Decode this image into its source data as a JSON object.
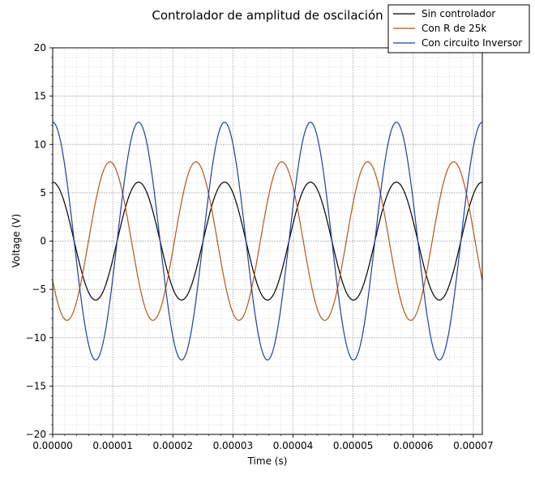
{
  "chart_data": {
    "type": "line",
    "title": "Controlador de amplitud de oscilación",
    "xlabel": "Time (s)",
    "ylabel": "Voltage (V)",
    "xlim": [
      0,
      7.15e-05
    ],
    "ylim": [
      -20,
      20
    ],
    "x_ticks": [
      "0.00000",
      "0.00001",
      "0.00002",
      "0.00003",
      "0.00004",
      "0.00005",
      "0.00006",
      "0.00007"
    ],
    "y_ticks": [
      "20",
      "15",
      "10",
      "5",
      "0",
      "−5",
      "−10",
      "−15",
      "−20"
    ],
    "grid": "major and minor, dotted",
    "legend_position": "top-right",
    "series": [
      {
        "name": "Sin controlador",
        "color": "#000000",
        "waveform": "cosine",
        "amplitude": 6.1,
        "period": 1.43e-05,
        "phase_at_zero_deg": 0
      },
      {
        "name": "Con R de 25k",
        "color": "#b5571a",
        "waveform": "cosine",
        "amplitude": 8.2,
        "period": 1.43e-05,
        "phase_at_zero_deg": 120
      },
      {
        "name": "Con circuito Inversor",
        "color": "#1f3f9e",
        "waveform": "cosine",
        "amplitude": 12.3,
        "period": 1.43e-05,
        "phase_at_zero_deg": 0
      }
    ]
  }
}
